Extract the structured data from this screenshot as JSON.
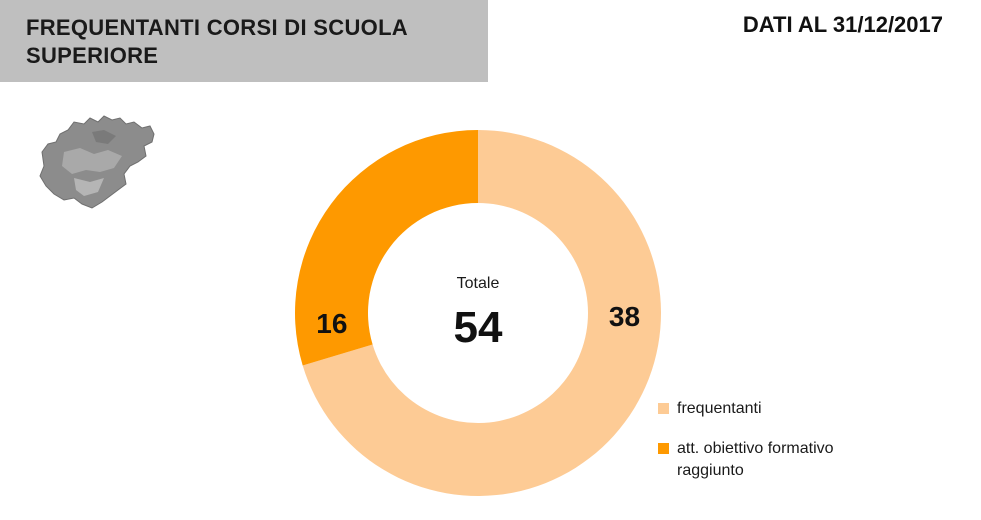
{
  "header": {
    "title": "FREQUENTANTI CORSI DI SCUOLA SUPERIORE",
    "date": "DATI AL 31/12/2017"
  },
  "map_icon": "trentino-region-map-icon",
  "chart_data": {
    "type": "donut",
    "center_label": "Totale",
    "center_value": "54",
    "series": [
      {
        "name": "frequentanti",
        "value": 38,
        "label": "38",
        "color": "#fdcb95"
      },
      {
        "name": "att. obiettivo formativo raggiunto",
        "value": 16,
        "label": "16",
        "color": "#fe9900"
      }
    ],
    "legend_placement": "bottom-right"
  }
}
